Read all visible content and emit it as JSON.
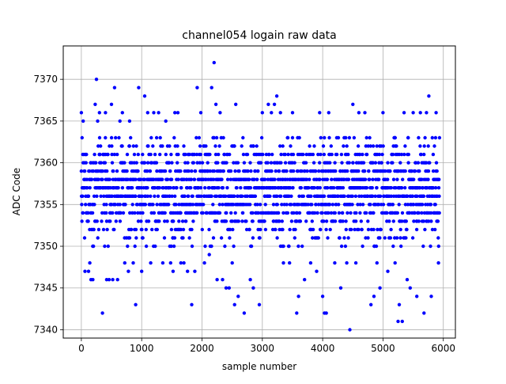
{
  "chart_data": {
    "type": "scatter",
    "title": "channel054 logain raw data",
    "xlabel": "sample number",
    "ylabel": "ADC Code",
    "xlim": [
      -300,
      6200
    ],
    "ylim": [
      7339,
      7374
    ],
    "xticks": [
      0,
      1000,
      2000,
      3000,
      4000,
      5000,
      6000
    ],
    "yticks": [
      7340,
      7345,
      7350,
      7355,
      7360,
      7365,
      7370
    ],
    "grid": true,
    "marker_color": "#0000ff",
    "series": [
      {
        "n_samples": 5940,
        "dense_band": [
          7350,
          7363
        ],
        "fringe_points": [
          [
            0,
            7366
          ],
          [
            30,
            7365
          ],
          [
            60,
            7347
          ],
          [
            120,
            7347
          ],
          [
            140,
            7348
          ],
          [
            160,
            7346
          ],
          [
            190,
            7346
          ],
          [
            230,
            7367
          ],
          [
            250,
            7370
          ],
          [
            270,
            7365
          ],
          [
            300,
            7366
          ],
          [
            350,
            7342
          ],
          [
            400,
            7366
          ],
          [
            420,
            7346
          ],
          [
            460,
            7346
          ],
          [
            500,
            7367
          ],
          [
            520,
            7346
          ],
          [
            550,
            7369
          ],
          [
            600,
            7346
          ],
          [
            640,
            7365
          ],
          [
            680,
            7366
          ],
          [
            720,
            7348
          ],
          [
            780,
            7347
          ],
          [
            800,
            7365
          ],
          [
            860,
            7348
          ],
          [
            900,
            7343
          ],
          [
            950,
            7369
          ],
          [
            1000,
            7347
          ],
          [
            1050,
            7368
          ],
          [
            1100,
            7366
          ],
          [
            1150,
            7348
          ],
          [
            1200,
            7366
          ],
          [
            1280,
            7366
          ],
          [
            1350,
            7348
          ],
          [
            1400,
            7365
          ],
          [
            1480,
            7348
          ],
          [
            1520,
            7347
          ],
          [
            1550,
            7366
          ],
          [
            1600,
            7366
          ],
          [
            1650,
            7348
          ],
          [
            1700,
            7348
          ],
          [
            1760,
            7347
          ],
          [
            1830,
            7343
          ],
          [
            1880,
            7347
          ],
          [
            1920,
            7369
          ],
          [
            1980,
            7366
          ],
          [
            2040,
            7348
          ],
          [
            2120,
            7349
          ],
          [
            2160,
            7369
          ],
          [
            2200,
            7372
          ],
          [
            2230,
            7367
          ],
          [
            2250,
            7346
          ],
          [
            2300,
            7366
          ],
          [
            2340,
            7346
          ],
          [
            2400,
            7345
          ],
          [
            2450,
            7345
          ],
          [
            2500,
            7348
          ],
          [
            2540,
            7343
          ],
          [
            2560,
            7367
          ],
          [
            2600,
            7344
          ],
          [
            2700,
            7342
          ],
          [
            2800,
            7346
          ],
          [
            2850,
            7345
          ],
          [
            2950,
            7343
          ],
          [
            3000,
            7366
          ],
          [
            3100,
            7367
          ],
          [
            3150,
            7366
          ],
          [
            3200,
            7367
          ],
          [
            3240,
            7368
          ],
          [
            3300,
            7366
          ],
          [
            3350,
            7348
          ],
          [
            3450,
            7348
          ],
          [
            3500,
            7366
          ],
          [
            3570,
            7342
          ],
          [
            3600,
            7344
          ],
          [
            3700,
            7346
          ],
          [
            3800,
            7348
          ],
          [
            3900,
            7347
          ],
          [
            3950,
            7366
          ],
          [
            4000,
            7344
          ],
          [
            4030,
            7342
          ],
          [
            4060,
            7342
          ],
          [
            4100,
            7366
          ],
          [
            4200,
            7348
          ],
          [
            4300,
            7345
          ],
          [
            4400,
            7348
          ],
          [
            4450,
            7340
          ],
          [
            4500,
            7367
          ],
          [
            4550,
            7348
          ],
          [
            4600,
            7366
          ],
          [
            4700,
            7366
          ],
          [
            4800,
            7343
          ],
          [
            4850,
            7344
          ],
          [
            4900,
            7348
          ],
          [
            4950,
            7345
          ],
          [
            5000,
            7366
          ],
          [
            5080,
            7347
          ],
          [
            5200,
            7348
          ],
          [
            5250,
            7341
          ],
          [
            5270,
            7343
          ],
          [
            5320,
            7341
          ],
          [
            5350,
            7366
          ],
          [
            5400,
            7346
          ],
          [
            5450,
            7345
          ],
          [
            5500,
            7366
          ],
          [
            5560,
            7344
          ],
          [
            5620,
            7366
          ],
          [
            5680,
            7342
          ],
          [
            5720,
            7366
          ],
          [
            5760,
            7368
          ],
          [
            5800,
            7344
          ],
          [
            5880,
            7366
          ],
          [
            5920,
            7348
          ]
        ]
      }
    ]
  }
}
